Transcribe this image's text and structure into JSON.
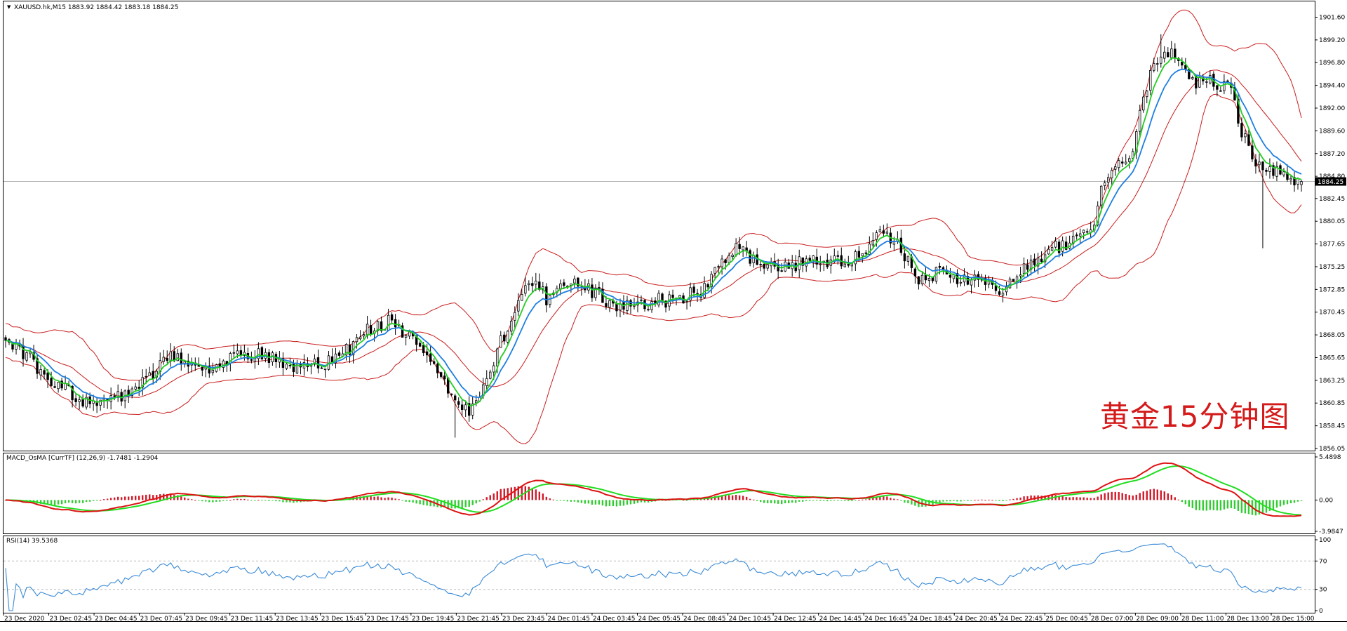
{
  "window": {
    "symbol_line": "XAUUSD.hk,M15  1883.92 1884.42 1883.18 1884.25",
    "current_price": "1884.25"
  },
  "watermark": "黄金15分钟图",
  "colors": {
    "candle_bull_fill": "#ffffff",
    "candle_bear_fill": "#000000",
    "bollinger": "#c91d1d",
    "ma_fast": "#22cc22",
    "ma_slow": "#1e7fe0",
    "macd_main": "#dd1111",
    "macd_signal": "#22dd22",
    "hist_pos": "#d01a2a",
    "hist_neg": "#33cc33",
    "rsi": "#3a8ad6"
  },
  "chart_data": [
    {
      "type": "candlestick",
      "panel": "price",
      "ylim": [
        1856.05,
        1902.6
      ],
      "yticks": [
        "1901.60",
        "1899.20",
        "1896.80",
        "1894.40",
        "1892.00",
        "1889.60",
        "1887.20",
        "1884.80",
        "1882.45",
        "1880.05",
        "1877.65",
        "1875.25",
        "1872.85",
        "1870.45",
        "1868.05",
        "1865.65",
        "1863.25",
        "1860.85",
        "1858.45",
        "1856.05"
      ],
      "xticks": [
        "23 Dec 2020",
        "23 Dec 02:45",
        "23 Dec 04:45",
        "23 Dec 07:45",
        "23 Dec 09:45",
        "23 Dec 11:45",
        "23 Dec 13:45",
        "23 Dec 15:45",
        "23 Dec 17:45",
        "23 Dec 19:45",
        "23 Dec 21:45",
        "23 Dec 23:45",
        "24 Dec 01:45",
        "24 Dec 03:45",
        "24 Dec 05:45",
        "24 Dec 08:45",
        "24 Dec 10:45",
        "24 Dec 12:45",
        "24 Dec 14:45",
        "24 Dec 16:45",
        "24 Dec 18:45",
        "24 Dec 20:45",
        "24 Dec 22:45",
        "25 Dec 00:45",
        "28 Dec 07:00",
        "28 Dec 09:00",
        "28 Dec 11:00",
        "28 Dec 13:00",
        "28 Dec 15:00"
      ],
      "price_anchors": [
        [
          0,
          1866.8
        ],
        [
          6,
          1866.0
        ],
        [
          12,
          1863.2
        ],
        [
          20,
          1861.5
        ],
        [
          26,
          1860.4
        ],
        [
          33,
          1861.5
        ],
        [
          40,
          1863.5
        ],
        [
          47,
          1865.5
        ],
        [
          52,
          1865.0
        ],
        [
          58,
          1864.8
        ],
        [
          64,
          1865.5
        ],
        [
          72,
          1866.3
        ],
        [
          78,
          1865.0
        ],
        [
          84,
          1864.5
        ],
        [
          92,
          1865.2
        ],
        [
          98,
          1866.6
        ],
        [
          104,
          1868.8
        ],
        [
          109,
          1869.5
        ],
        [
          114,
          1868.0
        ],
        [
          119,
          1866.0
        ],
        [
          124,
          1864.0
        ],
        [
          128,
          1861.0
        ],
        [
          132,
          1860.3
        ],
        [
          136,
          1862.5
        ],
        [
          140,
          1866.5
        ],
        [
          146,
          1871.5
        ],
        [
          150,
          1874.0
        ],
        [
          154,
          1872.0
        ],
        [
          158,
          1873.0
        ],
        [
          164,
          1873.5
        ],
        [
          170,
          1872.0
        ],
        [
          176,
          1870.8
        ],
        [
          182,
          1871.5
        ],
        [
          190,
          1871.8
        ],
        [
          198,
          1872.8
        ],
        [
          204,
          1875.5
        ],
        [
          209,
          1877.5
        ],
        [
          213,
          1876.0
        ],
        [
          218,
          1875.2
        ],
        [
          224,
          1875.5
        ],
        [
          232,
          1875.8
        ],
        [
          240,
          1876.0
        ],
        [
          246,
          1877.5
        ],
        [
          251,
          1879.0
        ],
        [
          256,
          1876.5
        ],
        [
          260,
          1874.0
        ],
        [
          266,
          1874.5
        ],
        [
          272,
          1874.0
        ],
        [
          278,
          1873.5
        ],
        [
          282,
          1872.5
        ],
        [
          287,
          1874.0
        ],
        [
          292,
          1876.0
        ],
        [
          298,
          1877.0
        ],
        [
          304,
          1878.0
        ],
        [
          308,
          1879.0
        ],
        [
          310,
          1880.0
        ],
        [
          312,
          1883.5
        ],
        [
          316,
          1886.5
        ],
        [
          320,
          1886.0
        ],
        [
          324,
          1893.5
        ],
        [
          328,
          1897.5
        ],
        [
          332,
          1898.0
        ],
        [
          335,
          1896.0
        ],
        [
          339,
          1894.8
        ],
        [
          345,
          1894.6
        ],
        [
          349,
          1894.0
        ],
        [
          352,
          1889.5
        ],
        [
          356,
          1886.0
        ],
        [
          360,
          1885.3
        ],
        [
          365,
          1885.0
        ],
        [
          369,
          1884.25
        ]
      ],
      "volatility_note": "15-minute bars with Bollinger Bands (20) and two moving averages"
    },
    {
      "type": "line+bar",
      "panel": "macd",
      "label": "MACD_OsMA [CurrTF] (12,26,9) -1.7481 -1.2904",
      "ylim": [
        -3.9847,
        5.4898
      ],
      "yticks": [
        "5.4898",
        "0.00",
        "-3.9847"
      ]
    },
    {
      "type": "line",
      "panel": "rsi",
      "label": "RSI(14) 39.5368",
      "ylim": [
        0,
        100
      ],
      "yticks": [
        "100",
        "70",
        "30",
        "0"
      ],
      "levels": [
        70,
        30
      ]
    }
  ]
}
